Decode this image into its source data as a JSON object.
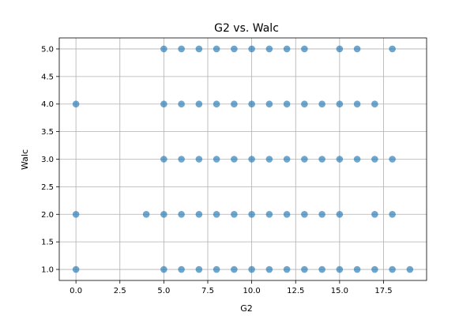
{
  "chart_data": {
    "type": "scatter",
    "title": "G2 vs. Walc",
    "xlabel": "G2",
    "ylabel": "Walc",
    "xlim": [
      -0.95,
      19.95
    ],
    "ylim": [
      0.8,
      5.2
    ],
    "xticks": [
      0.0,
      2.5,
      5.0,
      7.5,
      10.0,
      12.5,
      15.0,
      17.5
    ],
    "xtick_labels": [
      "0.0",
      "2.5",
      "5.0",
      "7.5",
      "10.0",
      "12.5",
      "15.0",
      "17.5"
    ],
    "yticks": [
      1.0,
      1.5,
      2.0,
      2.5,
      3.0,
      3.5,
      4.0,
      4.5,
      5.0
    ],
    "ytick_labels": [
      "1.0",
      "1.5",
      "2.0",
      "2.5",
      "3.0",
      "3.5",
      "4.0",
      "4.5",
      "5.0"
    ],
    "grid": true,
    "marker_color": "#1f77b4",
    "points": [
      {
        "y": 5,
        "x": [
          5,
          6,
          7,
          8,
          9,
          10,
          11,
          12,
          13,
          15,
          16,
          18
        ]
      },
      {
        "y": 4,
        "x": [
          0,
          5,
          6,
          7,
          8,
          9,
          10,
          11,
          12,
          13,
          14,
          15,
          16,
          17
        ]
      },
      {
        "y": 3,
        "x": [
          5,
          6,
          7,
          8,
          9,
          10,
          11,
          12,
          13,
          14,
          15,
          16,
          17,
          18
        ]
      },
      {
        "y": 2,
        "x": [
          0,
          4,
          5,
          6,
          7,
          8,
          9,
          10,
          11,
          12,
          13,
          14,
          15,
          17,
          18
        ]
      },
      {
        "y": 1,
        "x": [
          0,
          5,
          6,
          7,
          8,
          9,
          10,
          11,
          12,
          13,
          14,
          15,
          16,
          17,
          18,
          19
        ]
      }
    ]
  }
}
